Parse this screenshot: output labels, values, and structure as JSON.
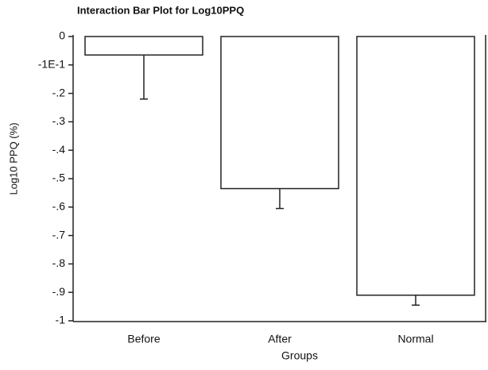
{
  "chart_data": {
    "type": "bar",
    "title": "Interaction Bar Plot for Log10PPQ",
    "x_label": "Groups",
    "y_label": "Log10 PPQ (%)",
    "categories": [
      "Before",
      "After",
      "Normal"
    ],
    "values": [
      -0.065,
      -0.535,
      -0.91
    ],
    "error": [
      0.155,
      0.07,
      0.035
    ],
    "color": "#ffffff",
    "ylim": [
      -1,
      0
    ],
    "yticks": [
      0,
      {
        "value": -0.1,
        "label": "-1E-1"
      },
      {
        "value": -0.2,
        "label": "-.2"
      },
      {
        "value": -0.3,
        "label": "-.3"
      },
      {
        "value": -0.4,
        "label": "-.4"
      },
      {
        "value": -0.5,
        "label": "-.5"
      },
      {
        "value": -0.6,
        "label": "-.6"
      },
      {
        "value": -0.7,
        "label": "-.7"
      },
      {
        "value": -0.8,
        "label": "-.8"
      },
      {
        "value": -0.9,
        "label": "-.9"
      },
      -1
    ],
    "grid": false
  }
}
